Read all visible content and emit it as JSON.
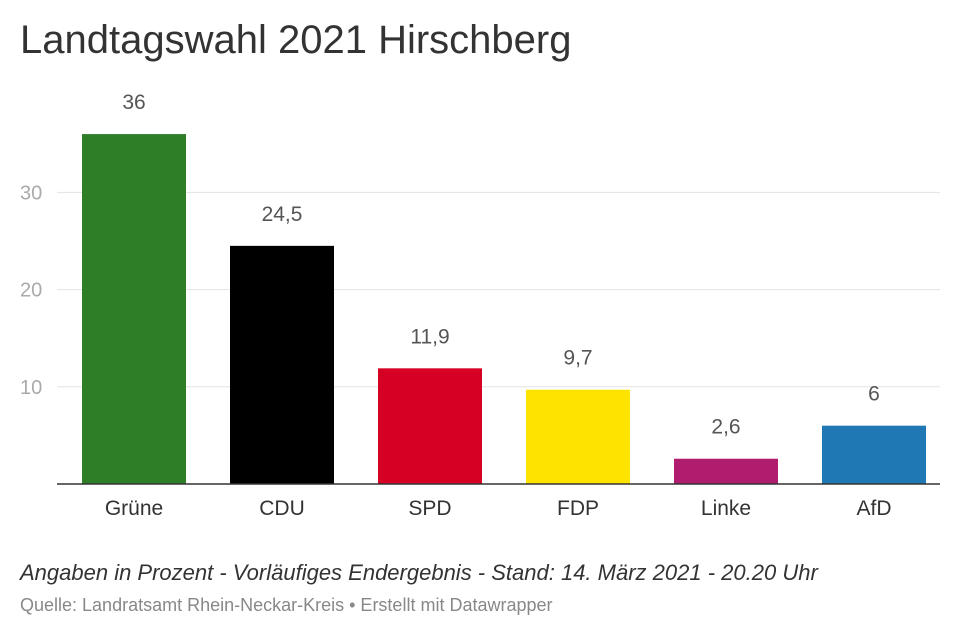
{
  "title": "Landtagswahl 2021 Hirschberg",
  "notes": "Angaben in Prozent - Vorläufiges Endergebnis - Stand: 14. März 2021 - 20.20 Uhr",
  "source": "Quelle: Landratsamt Rhein-Neckar-Kreis • Erstellt mit Datawrapper",
  "chart_data": {
    "type": "bar",
    "title": "Landtagswahl 2021 Hirschberg",
    "xlabel": "",
    "ylabel": "",
    "categories": [
      "Grüne",
      "CDU",
      "SPD",
      "FDP",
      "Linke",
      "AfD"
    ],
    "values": [
      36,
      24.5,
      11.9,
      9.7,
      2.6,
      6
    ],
    "value_labels": [
      "36",
      "24,5",
      "11,9",
      "9,7",
      "2,6",
      "6"
    ],
    "colors": [
      "#2e7d27",
      "#000000",
      "#d50024",
      "#ffe300",
      "#b01c6e",
      "#1f77b4"
    ],
    "ylim": [
      0,
      37.5
    ],
    "yticks": [
      10,
      20,
      30
    ],
    "ytick_labels": [
      "10",
      "20",
      "30"
    ],
    "grid": true,
    "legend": "none"
  }
}
